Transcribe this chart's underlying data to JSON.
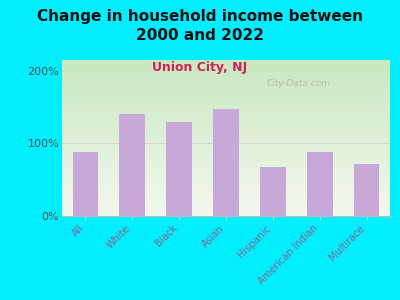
{
  "title": "Change in household income between\n2000 and 2022",
  "subtitle": "Union City, NJ",
  "categories": [
    "All",
    "White",
    "Black",
    "Asian",
    "Hispanic",
    "American Indian",
    "Multirace"
  ],
  "values": [
    88,
    140,
    130,
    148,
    68,
    88,
    72
  ],
  "bar_color": "#c8a8d8",
  "title_fontsize": 11,
  "subtitle_fontsize": 9,
  "subtitle_color": "#cc2255",
  "background_outer": "#00eeff",
  "background_inner_top_left": "#c8e8c0",
  "background_inner_bottom_right": "#f4f8ee",
  "yticks": [
    0,
    100,
    200
  ],
  "ytick_labels": [
    "0%",
    "100%",
    "200%"
  ],
  "ylim": [
    0,
    215
  ],
  "watermark": "City-Data.com"
}
